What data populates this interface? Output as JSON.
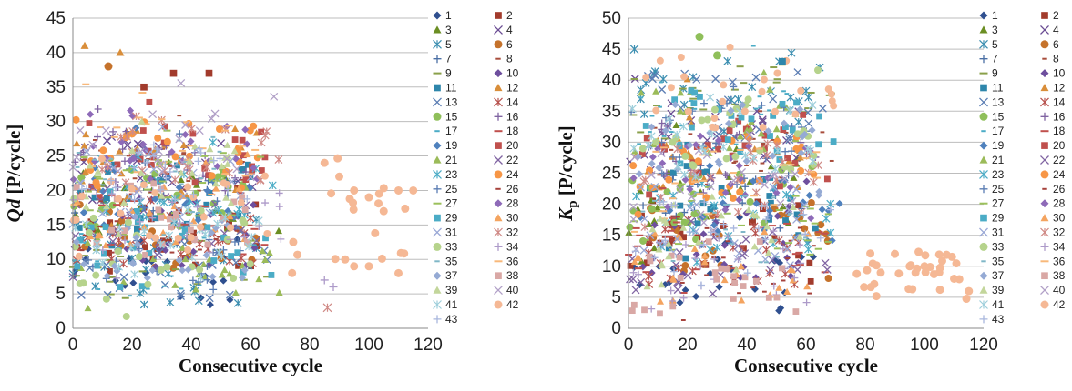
{
  "chart_data": [
    {
      "type": "scatter",
      "title": "",
      "xlabel": "Consecutive cycle",
      "ylabel": "Qd [P/cycle]",
      "ylabel_main": "Qd",
      "ylabel_unit": " [P/cycle]",
      "xlim": [
        0,
        120
      ],
      "ylim": [
        0,
        45
      ],
      "x_ticks": [
        0,
        20,
        40,
        60,
        80,
        100,
        120
      ],
      "y_ticks": [
        0,
        5,
        10,
        15,
        20,
        25,
        30,
        35,
        40,
        45
      ],
      "grid": "horizontal",
      "legend_position": "right",
      "series_names": [
        "1",
        "2",
        "3",
        "4",
        "5",
        "6",
        "7",
        "8",
        "9",
        "10",
        "11",
        "12",
        "13",
        "14",
        "15",
        "16",
        "17",
        "18",
        "19",
        "20",
        "21",
        "22",
        "23",
        "24",
        "25",
        "26",
        "27",
        "28",
        "29",
        "30",
        "31",
        "32",
        "33",
        "34",
        "35",
        "36",
        "37",
        "38",
        "39",
        "40",
        "41",
        "42",
        "43"
      ],
      "series_estimate": {
        "x_range_by_series": "0 to ~70 cycles for most series; series 42 extends to ~115 cycles; series 25 and 34 to ~90",
        "y_band": "most points between 2 and 30 P/cycle, outliers up to 41"
      },
      "sample_points": [
        {
          "series": "42",
          "x": 85,
          "y": 24
        },
        {
          "series": "42",
          "x": 90,
          "y": 22
        },
        {
          "series": "42",
          "x": 95,
          "y": 20
        },
        {
          "series": "42",
          "x": 100,
          "y": 19
        },
        {
          "series": "42",
          "x": 105,
          "y": 17
        },
        {
          "series": "42",
          "x": 110,
          "y": 20
        },
        {
          "series": "42",
          "x": 115,
          "y": 20
        },
        {
          "series": "42",
          "x": 95,
          "y": 9
        },
        {
          "series": "42",
          "x": 100,
          "y": 9
        },
        {
          "series": "42",
          "x": 110,
          "y": 8
        },
        {
          "series": "12",
          "x": 4,
          "y": 41
        },
        {
          "series": "12",
          "x": 16,
          "y": 40
        },
        {
          "series": "6",
          "x": 12,
          "y": 38
        },
        {
          "series": "2",
          "x": 34,
          "y": 37
        },
        {
          "series": "2",
          "x": 46,
          "y": 37
        },
        {
          "series": "2",
          "x": 24,
          "y": 35
        },
        {
          "series": "34",
          "x": 85,
          "y": 7
        },
        {
          "series": "34",
          "x": 88,
          "y": 6
        },
        {
          "series": "32",
          "x": 86,
          "y": 3
        }
      ]
    },
    {
      "type": "scatter",
      "title": "",
      "xlabel": "Consecutive cycle",
      "ylabel": "Kp [P/cycle]",
      "ylabel_main": "K",
      "ylabel_sub": "p",
      "ylabel_unit": " [P/cycle]",
      "xlim": [
        0,
        120
      ],
      "ylim": [
        0,
        50
      ],
      "x_ticks": [
        0,
        20,
        40,
        60,
        80,
        100,
        120
      ],
      "y_ticks": [
        0,
        5,
        10,
        15,
        20,
        25,
        30,
        35,
        40,
        45,
        50
      ],
      "grid": "horizontal",
      "legend_position": "right",
      "series_names": [
        "1",
        "2",
        "3",
        "4",
        "5",
        "6",
        "7",
        "8",
        "9",
        "10",
        "11",
        "12",
        "13",
        "14",
        "15",
        "16",
        "17",
        "18",
        "19",
        "20",
        "21",
        "22",
        "23",
        "24",
        "25",
        "26",
        "27",
        "28",
        "29",
        "30",
        "31",
        "32",
        "33",
        "34",
        "35",
        "36",
        "37",
        "38",
        "39",
        "40",
        "41",
        "42",
        "43"
      ],
      "series_estimate": {
        "x_range_by_series": "0 to ~75 cycles for most series; series 42 extends to ~115 cycles",
        "y_band": "points spread between 0 and 45 P/cycle"
      },
      "sample_points": [
        {
          "series": "15",
          "x": 24,
          "y": 47
        },
        {
          "series": "15",
          "x": 30,
          "y": 44
        },
        {
          "series": "5",
          "x": 2,
          "y": 45
        },
        {
          "series": "11",
          "x": 52,
          "y": 43
        },
        {
          "series": "42",
          "x": 90,
          "y": 12
        },
        {
          "series": "42",
          "x": 95,
          "y": 10
        },
        {
          "series": "42",
          "x": 100,
          "y": 10
        },
        {
          "series": "42",
          "x": 105,
          "y": 9
        },
        {
          "series": "42",
          "x": 110,
          "y": 8
        },
        {
          "series": "42",
          "x": 115,
          "y": 6
        }
      ]
    }
  ],
  "legend_markers": [
    "diamond",
    "square",
    "triangle",
    "x",
    "star",
    "circle",
    "plus",
    "dash",
    "longdash",
    "diamond",
    "square",
    "triangle",
    "x",
    "star",
    "circle",
    "plus",
    "dash",
    "longdash",
    "diamond",
    "square",
    "triangle",
    "x",
    "star",
    "circle",
    "plus",
    "dash",
    "longdash",
    "diamond",
    "square",
    "triangle",
    "x",
    "star",
    "circle",
    "plus",
    "dash",
    "longdash",
    "diamond",
    "square",
    "triangle",
    "x",
    "star",
    "circle",
    "plus"
  ],
  "legend_colors": [
    "#2f4f8f",
    "#a23b2c",
    "#6b8e23",
    "#6a4c93",
    "#3b8eb0",
    "#c5722b",
    "#4a6fa5",
    "#a84d3c",
    "#8aa04a",
    "#6e4f9e",
    "#2e86ab",
    "#d98e3a",
    "#5b7db3",
    "#b85450",
    "#8fbf5a",
    "#8064a2",
    "#4bacc6",
    "#c0504d",
    "#4f81bd",
    "#c0504d",
    "#9bbb59",
    "#8064a2",
    "#4bacc6",
    "#f79646",
    "#5b7db3",
    "#a6423c",
    "#9bc05b",
    "#8e6ab8",
    "#4bacc6",
    "#f4a460",
    "#9aa8d6",
    "#d08a86",
    "#b6d38c",
    "#ad9ac9",
    "#7fb7c7",
    "#f8b87a",
    "#95aad4",
    "#d9a8a5",
    "#c3d69b",
    "#b1a0c7",
    "#9ecfdb",
    "#f5b895",
    "#a9b7dd"
  ]
}
